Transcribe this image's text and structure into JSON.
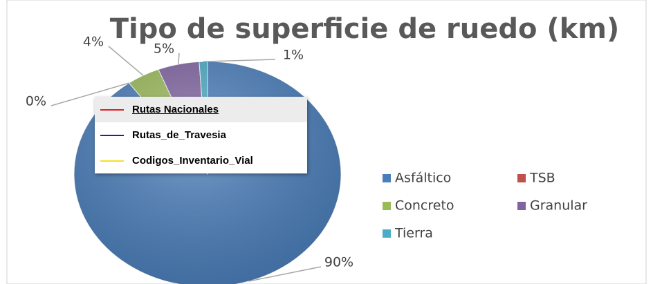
{
  "chart_data": {
    "type": "pie",
    "title": "Tipo de superficie de ruedo (km)",
    "categories": [
      "Asfáltico",
      "TSB",
      "Concreto",
      "Granular",
      "Tierra"
    ],
    "values": [
      90,
      0,
      4,
      5,
      1
    ],
    "value_labels": [
      "90%",
      "0%",
      "4%",
      "5%",
      "1%"
    ],
    "colors": [
      "#4a7ebb",
      "#c0504d",
      "#9bbb59",
      "#8064a2",
      "#4bacc6"
    ],
    "legend": "right"
  },
  "layer_list": {
    "items": [
      {
        "label": "Rutas Nacionales",
        "color": "#e02020"
      },
      {
        "label": "Rutas_de_Travesia",
        "color": "#1a1acc"
      },
      {
        "label": "Codigos_Inventario_Vial",
        "color": "#f0e030"
      }
    ]
  }
}
